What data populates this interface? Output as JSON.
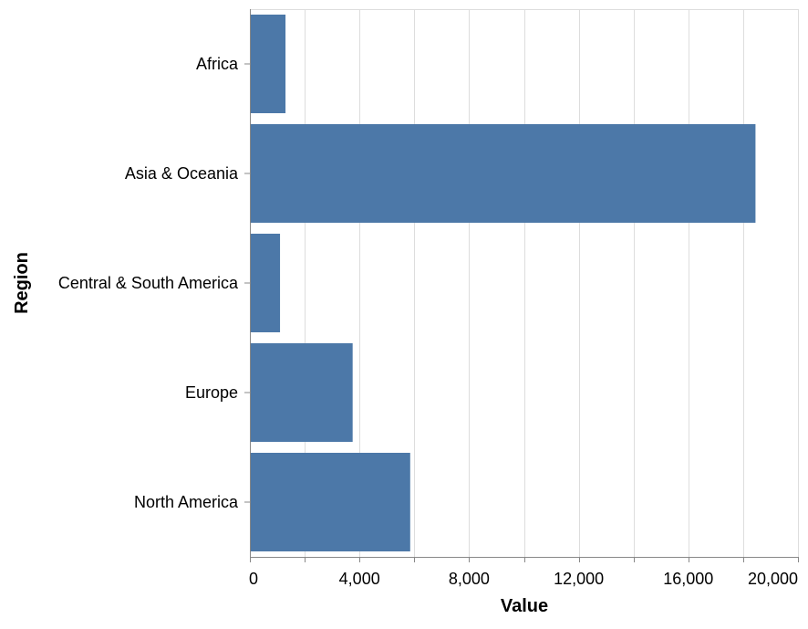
{
  "chart_data": {
    "type": "bar",
    "orientation": "horizontal",
    "categories": [
      "Africa",
      "Asia & Oceania",
      "Central & South America",
      "Europe",
      "North America"
    ],
    "values": [
      1300,
      18450,
      1100,
      3750,
      5850
    ],
    "xlabel": "Value",
    "ylabel": "Region",
    "xlim": [
      0,
      20000
    ],
    "xticks": [
      0,
      4000,
      8000,
      12000,
      16000,
      20000
    ],
    "xtick_labels": [
      "0",
      "4,000",
      "8,000",
      "12,000",
      "16,000",
      "20,000"
    ],
    "grid": true,
    "bar_color": "#4c78a8",
    "grid_color": "#dddddd",
    "axis_color": "#888888"
  }
}
